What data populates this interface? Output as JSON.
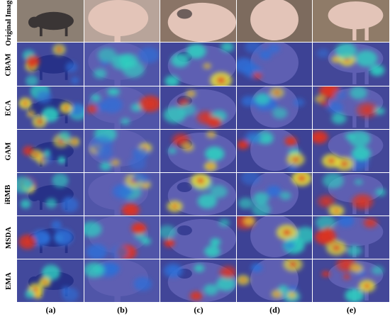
{
  "figure": {
    "row_labels": [
      "Original Image",
      "CBAM",
      "ECA",
      "GAM",
      "iRMB",
      "MSDA",
      "EMA"
    ],
    "column_labels": [
      "(a)",
      "(b)",
      "(c)",
      "(d)",
      "(e)"
    ]
  },
  "colors": {
    "photo_bg": [
      "#8c7f73",
      "#b8a49a",
      "#8a7466",
      "#7d6b5e",
      "#8f7b68"
    ],
    "pig_pink": "#e3c4b8",
    "pig_dark": "#3a3535",
    "heat_base": "#1f2fb0",
    "heat_cold": "#2d6fd8",
    "heat_mid": "#2fd0c0",
    "heat_warm": "#e8e23a",
    "heat_hot": "#e0331c"
  }
}
